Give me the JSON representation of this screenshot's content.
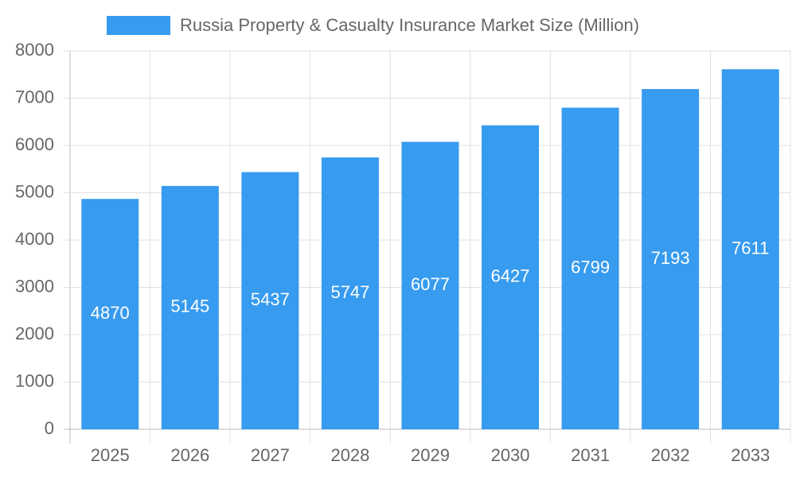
{
  "chart_data": {
    "type": "bar",
    "categories": [
      "2025",
      "2026",
      "2027",
      "2028",
      "2029",
      "2030",
      "2031",
      "2032",
      "2033"
    ],
    "series": [
      {
        "name": "Russia Property & Casualty Insurance Market Size (Million)",
        "color": "#379bef",
        "values": [
          4870,
          5145,
          5437,
          5747,
          6077,
          6427,
          6799,
          7193,
          7611
        ]
      }
    ],
    "ylim": [
      0,
      8000
    ],
    "yticks": [
      0,
      1000,
      2000,
      3000,
      4000,
      5000,
      6000,
      7000,
      8000
    ],
    "grid": true,
    "legend": "top"
  }
}
